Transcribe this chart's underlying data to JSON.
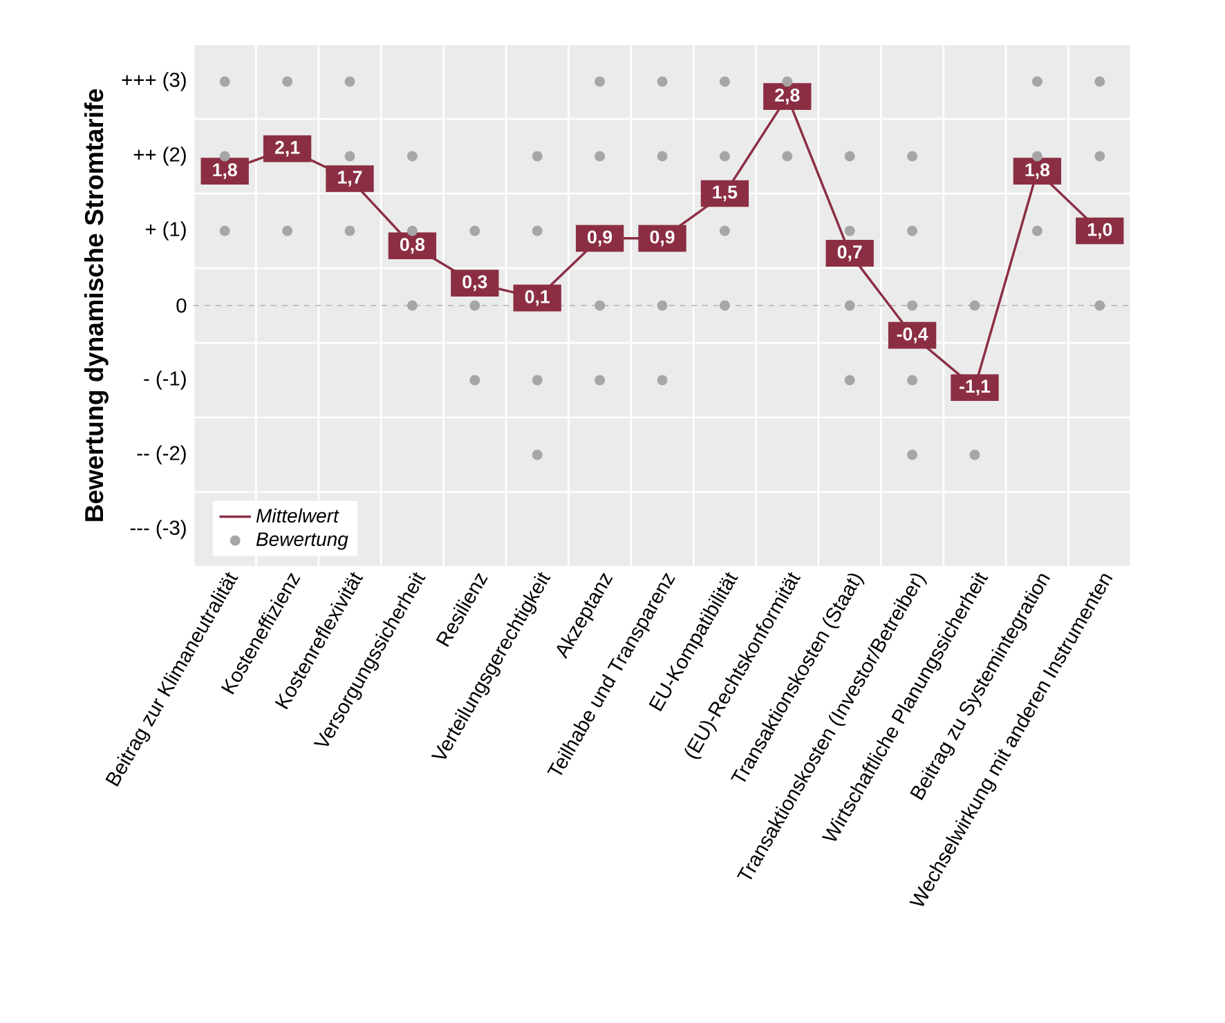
{
  "chart_data": {
    "type": "line",
    "ylabel": "Bewertung dynamische Stromtarife",
    "categories": [
      "Beitrag zur Klimaneutralität",
      "Kosteneffizienz",
      "Kostenreflexivität",
      "Versorgungssicherheit",
      "Resilienz",
      "Verteilungsgerechtigkeit",
      "Akzeptanz",
      "Teilhabe und Transparenz",
      "EU-Kompatibilität",
      "(EU)-Rechtskonformität",
      "Transaktionskosten (Staat)",
      "Transaktionskosten (Investor/Betreiber)",
      "Wirtschaftliche Planungssicherheit",
      "Beitrag zu Systemintegration",
      "Wechselwirkung mit anderen Instrumenten"
    ],
    "series": [
      {
        "name": "Mittelwert",
        "color": "#8b2e44",
        "marker": "square",
        "line_style": "solid",
        "values": [
          1.8,
          2.1,
          1.7,
          0.8,
          0.3,
          0.1,
          0.9,
          0.9,
          1.5,
          2.8,
          0.7,
          -0.4,
          -1.1,
          1.8,
          1.0
        ],
        "value_labels": [
          "1,8",
          "2,1",
          "1,7",
          "0,8",
          "0,3",
          "0,1",
          "0,9",
          "0,9",
          "1,5",
          "2,8",
          "0,7",
          "-0,4",
          "-1,1",
          "1,8",
          "1,0"
        ]
      },
      {
        "name": "Bewertung",
        "type": "scatter",
        "color": "#a6a6a6",
        "marker": "circle",
        "x": [
          "Beitrag zur Klimaneutralität",
          "Beitrag zur Klimaneutralität",
          "Beitrag zur Klimaneutralität",
          "Kosteneffizienz",
          "Kosteneffizienz",
          "Kostenreflexivität",
          "Kostenreflexivität",
          "Kostenreflexivität",
          "Versorgungssicherheit",
          "Versorgungssicherheit",
          "Versorgungssicherheit",
          "Resilienz",
          "Resilienz",
          "Resilienz",
          "Verteilungsgerechtigkeit",
          "Verteilungsgerechtigkeit",
          "Verteilungsgerechtigkeit",
          "Verteilungsgerechtigkeit",
          "Akzeptanz",
          "Akzeptanz",
          "Akzeptanz",
          "Akzeptanz",
          "Teilhabe und Transparenz",
          "Teilhabe und Transparenz",
          "Teilhabe und Transparenz",
          "Teilhabe und Transparenz",
          "EU-Kompatibilität",
          "EU-Kompatibilität",
          "EU-Kompatibilität",
          "EU-Kompatibilität",
          "(EU)-Rechtskonformität",
          "(EU)-Rechtskonformität",
          "Transaktionskosten (Staat)",
          "Transaktionskosten (Staat)",
          "Transaktionskosten (Staat)",
          "Transaktionskosten (Staat)",
          "Transaktionskosten (Investor/Betreiber)",
          "Transaktionskosten (Investor/Betreiber)",
          "Transaktionskosten (Investor/Betreiber)",
          "Transaktionskosten (Investor/Betreiber)",
          "Transaktionskosten (Investor/Betreiber)",
          "Wirtschaftliche Planungssicherheit",
          "Wirtschaftliche Planungssicherheit",
          "Beitrag zu Systemintegration",
          "Beitrag zu Systemintegration",
          "Beitrag zu Systemintegration",
          "Wechselwirkung mit anderen Instrumenten",
          "Wechselwirkung mit anderen Instrumenten",
          "Wechselwirkung mit anderen Instrumenten"
        ],
        "values": [
          3,
          2,
          1,
          3,
          1,
          3,
          2,
          1,
          2,
          1,
          0,
          1,
          0,
          -1,
          2,
          1,
          -1,
          -2,
          3,
          2,
          0,
          -1,
          3,
          2,
          0,
          -1,
          3,
          2,
          1,
          0,
          3,
          2,
          2,
          1,
          0,
          -1,
          2,
          1,
          0,
          -1,
          -2,
          0,
          -2,
          3,
          2,
          1,
          3,
          2,
          0
        ]
      }
    ],
    "ylim": [
      -3.5,
      3.5
    ],
    "yticks": [
      {
        "value": -3,
        "label": "--- (-3)"
      },
      {
        "value": -2,
        "label": "-- (-2)"
      },
      {
        "value": -1,
        "label": "- (-1)"
      },
      0,
      {
        "value": 1,
        "label": "+ (1)"
      },
      {
        "value": 2,
        "label": "++ (2)"
      },
      {
        "value": 3,
        "label": "+++ (3)"
      }
    ],
    "ref_lines": [
      {
        "axis": "y",
        "value": 0,
        "color": "#b3b3b3",
        "line_style": "dashed"
      }
    ],
    "grid": true,
    "legend": "bottom left"
  }
}
